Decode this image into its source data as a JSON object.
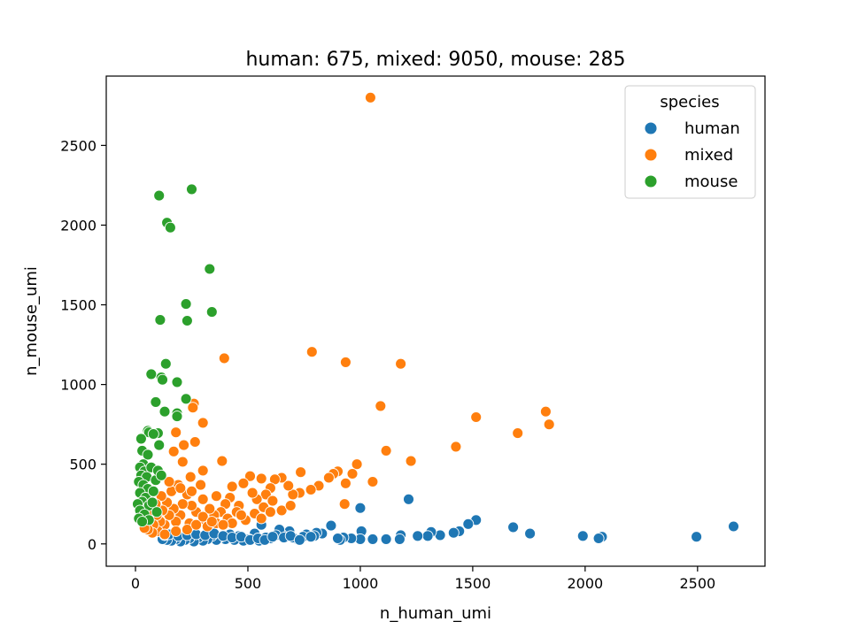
{
  "chart_data": {
    "type": "scatter",
    "title": "human: 675, mixed: 9050, mouse: 285",
    "xlabel": "n_human_umi",
    "ylabel": "n_mouse_umi",
    "xlim": [
      -130,
      2800
    ],
    "ylim": [
      -140,
      2935
    ],
    "xticks": [
      0,
      500,
      1000,
      1500,
      2000,
      2500
    ],
    "yticks": [
      0,
      500,
      1000,
      1500,
      2000,
      2500
    ],
    "xtick_labels": [
      "0",
      "500",
      "1000",
      "1500",
      "2000",
      "2500"
    ],
    "ytick_labels": [
      "0",
      "500",
      "1000",
      "1500",
      "2000",
      "2500"
    ],
    "grid": false,
    "legend": {
      "title": "species",
      "placement": "top-right"
    },
    "series": [
      {
        "name": "human",
        "color": "#1f77b4",
        "points": [
          [
            2660,
            110
          ],
          [
            2495,
            45
          ],
          [
            2075,
            45
          ],
          [
            2060,
            35
          ],
          [
            1990,
            50
          ],
          [
            1755,
            65
          ],
          [
            1680,
            105
          ],
          [
            1515,
            150
          ],
          [
            1480,
            125
          ],
          [
            1440,
            80
          ],
          [
            1415,
            70
          ],
          [
            1355,
            55
          ],
          [
            1315,
            75
          ],
          [
            1300,
            50
          ],
          [
            1255,
            50
          ],
          [
            1215,
            280
          ],
          [
            1180,
            55
          ],
          [
            1175,
            30
          ],
          [
            1115,
            30
          ],
          [
            1055,
            30
          ],
          [
            1005,
            80
          ],
          [
            1000,
            225
          ],
          [
            1000,
            30
          ],
          [
            960,
            35
          ],
          [
            925,
            40
          ],
          [
            910,
            25
          ],
          [
            900,
            35
          ],
          [
            870,
            115
          ],
          [
            830,
            65
          ],
          [
            805,
            70
          ],
          [
            795,
            50
          ],
          [
            760,
            60
          ],
          [
            745,
            45
          ],
          [
            720,
            30
          ],
          [
            700,
            40
          ],
          [
            685,
            80
          ],
          [
            650,
            60
          ],
          [
            640,
            90
          ],
          [
            625,
            55
          ],
          [
            600,
            35
          ],
          [
            580,
            40
          ],
          [
            560,
            120
          ],
          [
            550,
            20
          ],
          [
            530,
            65
          ],
          [
            505,
            30
          ],
          [
            480,
            20
          ],
          [
            460,
            50
          ],
          [
            440,
            25
          ],
          [
            420,
            60
          ],
          [
            400,
            30
          ],
          [
            380,
            45
          ],
          [
            360,
            25
          ],
          [
            340,
            50
          ],
          [
            320,
            30
          ],
          [
            300,
            20
          ],
          [
            280,
            40
          ],
          [
            260,
            15
          ],
          [
            240,
            35
          ],
          [
            220,
            25
          ],
          [
            200,
            15
          ],
          [
            180,
            30
          ],
          [
            160,
            20
          ],
          [
            140,
            25
          ],
          [
            120,
            30
          ],
          [
            130,
            55
          ],
          [
            150,
            60
          ],
          [
            190,
            50
          ],
          [
            230,
            55
          ],
          [
            270,
            60
          ],
          [
            310,
            55
          ],
          [
            350,
            65
          ],
          [
            390,
            50
          ],
          [
            430,
            40
          ],
          [
            470,
            45
          ],
          [
            510,
            25
          ],
          [
            545,
            35
          ],
          [
            575,
            25
          ],
          [
            610,
            45
          ],
          [
            660,
            40
          ],
          [
            690,
            50
          ],
          [
            730,
            25
          ],
          [
            780,
            45
          ]
        ]
      },
      {
        "name": "mixed",
        "color": "#ff7f0e",
        "points": [
          [
            1045,
            2800
          ],
          [
            785,
            1205
          ],
          [
            935,
            1140
          ],
          [
            1180,
            1130
          ],
          [
            395,
            1165
          ],
          [
            1090,
            865
          ],
          [
            1825,
            830
          ],
          [
            1840,
            750
          ],
          [
            1515,
            795
          ],
          [
            1700,
            695
          ],
          [
            260,
            880
          ],
          [
            255,
            855
          ],
          [
            300,
            760
          ],
          [
            180,
            700
          ],
          [
            1425,
            610
          ],
          [
            1115,
            585
          ],
          [
            1225,
            520
          ],
          [
            265,
            640
          ],
          [
            215,
            620
          ],
          [
            385,
            520
          ],
          [
            210,
            515
          ],
          [
            170,
            580
          ],
          [
            300,
            460
          ],
          [
            245,
            420
          ],
          [
            1055,
            390
          ],
          [
            985,
            500
          ],
          [
            965,
            440
          ],
          [
            935,
            380
          ],
          [
            930,
            250
          ],
          [
            900,
            455
          ],
          [
            880,
            440
          ],
          [
            860,
            415
          ],
          [
            815,
            365
          ],
          [
            780,
            340
          ],
          [
            735,
            450
          ],
          [
            730,
            320
          ],
          [
            700,
            310
          ],
          [
            680,
            365
          ],
          [
            650,
            415
          ],
          [
            620,
            405
          ],
          [
            600,
            350
          ],
          [
            580,
            310
          ],
          [
            560,
            410
          ],
          [
            540,
            280
          ],
          [
            510,
            425
          ],
          [
            520,
            320
          ],
          [
            480,
            380
          ],
          [
            460,
            240
          ],
          [
            430,
            360
          ],
          [
            420,
            290
          ],
          [
            400,
            250
          ],
          [
            380,
            200
          ],
          [
            360,
            300
          ],
          [
            350,
            180
          ],
          [
            330,
            220
          ],
          [
            310,
            150
          ],
          [
            300,
            280
          ],
          [
            290,
            370
          ],
          [
            270,
            200
          ],
          [
            250,
            240
          ],
          [
            240,
            130
          ],
          [
            230,
            310
          ],
          [
            210,
            250
          ],
          [
            200,
            180
          ],
          [
            190,
            370
          ],
          [
            180,
            140
          ],
          [
            170,
            220
          ],
          [
            160,
            330
          ],
          [
            150,
            180
          ],
          [
            140,
            260
          ],
          [
            130,
            120
          ],
          [
            120,
            210
          ],
          [
            115,
            300
          ],
          [
            110,
            140
          ],
          [
            100,
            80
          ],
          [
            95,
            180
          ],
          [
            90,
            250
          ],
          [
            80,
            120
          ],
          [
            75,
            70
          ],
          [
            70,
            200
          ],
          [
            60,
            150
          ],
          [
            55,
            90
          ],
          [
            40,
            100
          ],
          [
            130,
            60
          ],
          [
            180,
            80
          ],
          [
            230,
            90
          ],
          [
            270,
            120
          ],
          [
            320,
            110
          ],
          [
            360,
            130
          ],
          [
            410,
            160
          ],
          [
            450,
            200
          ],
          [
            490,
            150
          ],
          [
            530,
            190
          ],
          [
            570,
            230
          ],
          [
            610,
            270
          ],
          [
            650,
            210
          ],
          [
            690,
            240
          ],
          [
            430,
            130
          ],
          [
            390,
            120
          ],
          [
            150,
            390
          ],
          [
            200,
            350
          ],
          [
            250,
            330
          ],
          [
            300,
            170
          ],
          [
            340,
            140
          ],
          [
            470,
            180
          ],
          [
            560,
            160
          ],
          [
            600,
            200
          ]
        ]
      },
      {
        "name": "mouse",
        "color": "#2ca02c",
        "points": [
          [
            250,
            2225
          ],
          [
            105,
            2185
          ],
          [
            140,
            2015
          ],
          [
            155,
            1985
          ],
          [
            330,
            1725
          ],
          [
            225,
            1505
          ],
          [
            110,
            1405
          ],
          [
            230,
            1400
          ],
          [
            340,
            1455
          ],
          [
            135,
            1130
          ],
          [
            70,
            1065
          ],
          [
            115,
            1045
          ],
          [
            120,
            1030
          ],
          [
            185,
            1015
          ],
          [
            225,
            910
          ],
          [
            185,
            820
          ],
          [
            130,
            830
          ],
          [
            185,
            800
          ],
          [
            90,
            890
          ],
          [
            55,
            710
          ],
          [
            60,
            700
          ],
          [
            100,
            695
          ],
          [
            80,
            690
          ],
          [
            105,
            620
          ],
          [
            25,
            660
          ],
          [
            30,
            585
          ],
          [
            55,
            560
          ],
          [
            35,
            500
          ],
          [
            20,
            480
          ],
          [
            40,
            455
          ],
          [
            25,
            430
          ],
          [
            50,
            420
          ],
          [
            15,
            390
          ],
          [
            35,
            370
          ],
          [
            55,
            345
          ],
          [
            20,
            320
          ],
          [
            45,
            290
          ],
          [
            30,
            265
          ],
          [
            10,
            250
          ],
          [
            60,
            240
          ],
          [
            20,
            210
          ],
          [
            40,
            185
          ],
          [
            15,
            160
          ],
          [
            60,
            150
          ],
          [
            30,
            140
          ],
          [
            80,
            330
          ],
          [
            90,
            400
          ],
          [
            70,
            480
          ],
          [
            100,
            460
          ],
          [
            115,
            430
          ],
          [
            75,
            260
          ],
          [
            95,
            200
          ]
        ]
      }
    ]
  }
}
